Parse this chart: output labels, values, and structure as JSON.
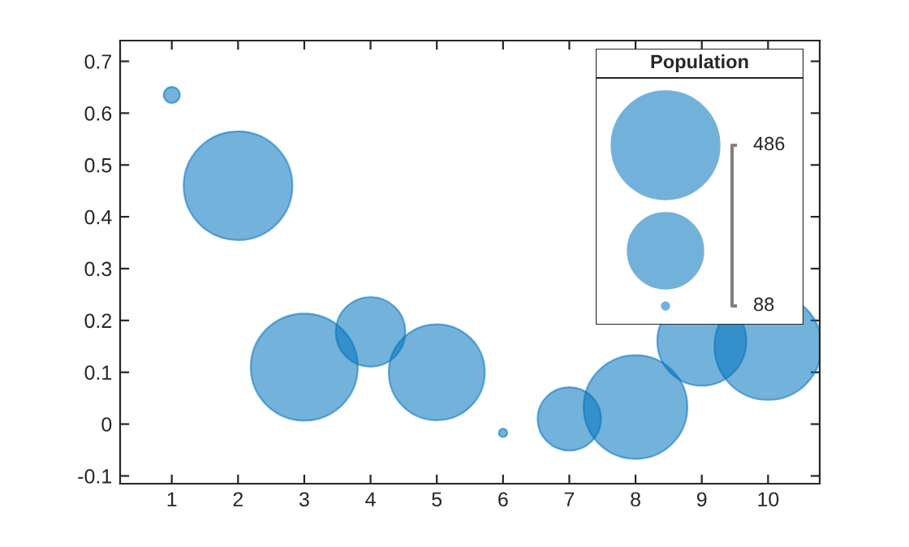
{
  "chart_data": {
    "type": "bubble",
    "legend_title": "Population",
    "x": [
      1,
      2,
      3,
      4,
      5,
      6,
      7,
      8,
      9,
      10
    ],
    "series": [
      {
        "color": "#0072bd",
        "values": [
          0.635,
          0.46,
          0.11,
          0.178,
          0.1,
          -0.017,
          0.01,
          0.033,
          0.16,
          0.15
        ],
        "sizes": [
          0.022,
          1,
          0.97,
          0.41,
          0.78,
          0.006,
          0.34,
          0.91,
          0.67,
          0.97
        ]
      }
    ],
    "size_legend": [
      {
        "value": 1,
        "label": "486"
      }
    ],
    "annotations": [
      "88"
    ],
    "xlim": [
      0.22,
      10.78
    ],
    "ylim": [
      -0.115,
      0.74
    ],
    "xticks": [
      1,
      2,
      3,
      4,
      5,
      6,
      7,
      8,
      9,
      10
    ],
    "yticks": [
      -0.1,
      0,
      0.1,
      0.2,
      0.3,
      0.4,
      0.5,
      0.6,
      0.7
    ],
    "grid": false
  }
}
